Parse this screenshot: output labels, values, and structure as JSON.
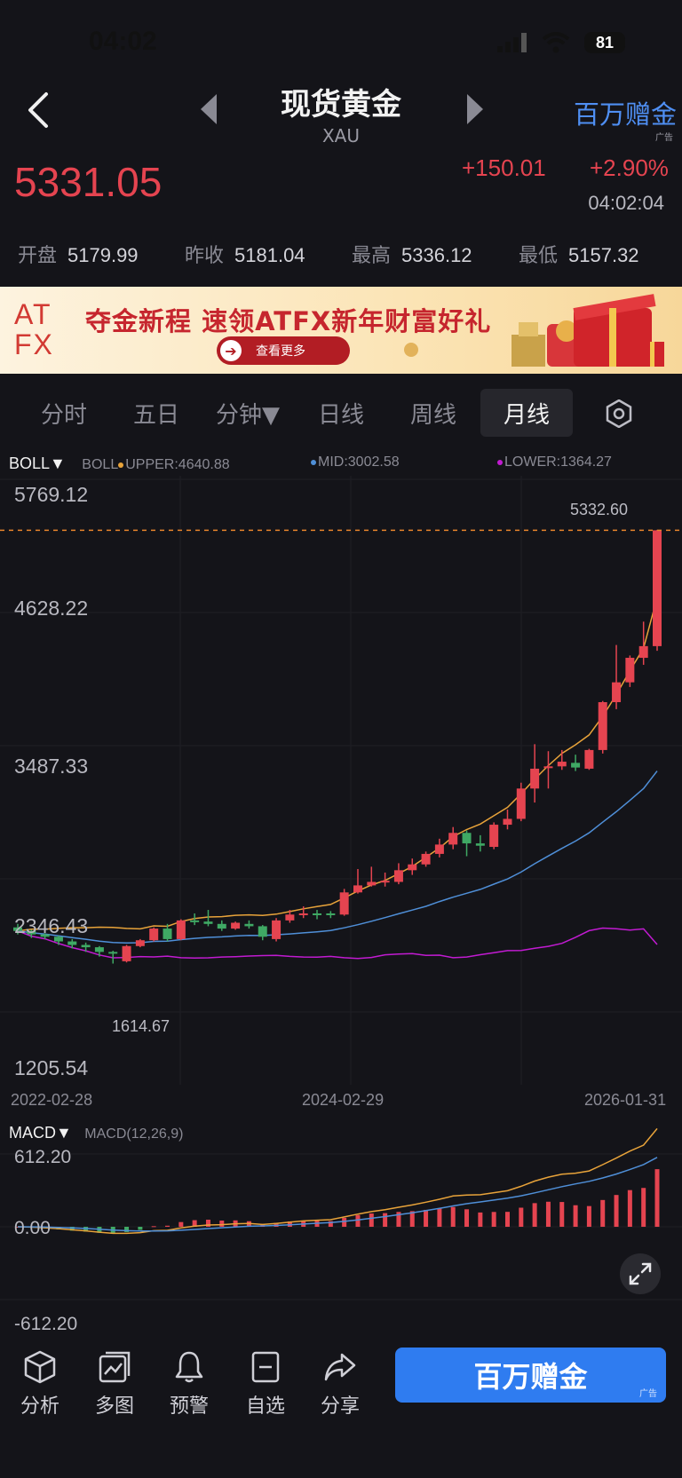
{
  "status": {
    "time": "04:02",
    "battery": "81"
  },
  "nav": {
    "title": "现货黄金",
    "subtitle": "XAU",
    "ad_label": "百万赠金",
    "ad_tag": "广告"
  },
  "quote": {
    "price": "5331.05",
    "change": "+150.01",
    "change_pct": "+2.90%",
    "time": "04:02:04"
  },
  "ohlc": [
    {
      "label": "开盘",
      "value": "5179.99"
    },
    {
      "label": "昨收",
      "value": "5181.04"
    },
    {
      "label": "最高",
      "value": "5336.12"
    },
    {
      "label": "最低",
      "value": "5157.32"
    }
  ],
  "banner": {
    "logo_line1": "AT",
    "logo_line2": "FX",
    "headline": "夺金新程  速领ATFX新年财富好礼",
    "button": "查看更多"
  },
  "tabs": [
    "分时",
    "五日",
    "分钟▼",
    "日线",
    "周线",
    "月线"
  ],
  "selected_tab": "月线",
  "indicator": {
    "name": "BOLL▼",
    "boll": "BOLL",
    "upper": "UPPER:4640.88",
    "mid": "MID:3002.58",
    "lower": "LOWER:1364.27"
  },
  "price_axis": [
    "5769.12",
    "4628.22",
    "3487.33",
    "2346.43",
    "1205.54"
  ],
  "marker_high": "5332.60",
  "marker_low": "1614.67",
  "date_axis": [
    "2022-02-28",
    "2024-02-29",
    "2026-01-31"
  ],
  "macd": {
    "name": "MACD▼",
    "params": "MACD(12,26,9)",
    "axis": [
      "612.20",
      "0.00",
      "-612.20"
    ]
  },
  "bottom": {
    "buttons": [
      "分析",
      "多图",
      "预警",
      "自选",
      "分享"
    ],
    "cta": "百万赠金",
    "cta_tag": "广告"
  },
  "colors": {
    "up": "#e54450",
    "down": "#3fa964",
    "accent": "#2f7cf0",
    "upper_line": "#e8a33a",
    "mid_line": "#4f8fd8",
    "lower_line": "#c21bd2"
  },
  "chart_data": {
    "type": "candlestick",
    "title": "",
    "x_range": [
      "2022-02-28",
      "2026-01-31"
    ],
    "ylim": [
      1205.54,
      5769.12
    ],
    "last_close": 5332.6,
    "series_approx": [
      {
        "o": 1930,
        "c": 1900,
        "h": 1960,
        "l": 1870
      },
      {
        "o": 1900,
        "c": 1870,
        "h": 1910,
        "l": 1840
      },
      {
        "o": 1870,
        "c": 1850,
        "h": 1880,
        "l": 1830
      },
      {
        "o": 1850,
        "c": 1810,
        "h": 1860,
        "l": 1780
      },
      {
        "o": 1810,
        "c": 1780,
        "h": 1830,
        "l": 1750
      },
      {
        "o": 1780,
        "c": 1760,
        "h": 1800,
        "l": 1720
      },
      {
        "o": 1760,
        "c": 1720,
        "h": 1770,
        "l": 1680
      },
      {
        "o": 1720,
        "c": 1710,
        "h": 1730,
        "l": 1620
      },
      {
        "o": 1640,
        "c": 1770,
        "h": 1780,
        "l": 1630
      },
      {
        "o": 1770,
        "c": 1820,
        "h": 1830,
        "l": 1760
      },
      {
        "o": 1820,
        "c": 1920,
        "h": 1930,
        "l": 1810
      },
      {
        "o": 1920,
        "c": 1830,
        "h": 1960,
        "l": 1810
      },
      {
        "o": 1830,
        "c": 1990,
        "h": 2000,
        "l": 1820
      },
      {
        "o": 1990,
        "c": 1980,
        "h": 2050,
        "l": 1950
      },
      {
        "o": 1980,
        "c": 1960,
        "h": 2080,
        "l": 1940
      },
      {
        "o": 1960,
        "c": 1920,
        "h": 1990,
        "l": 1900
      },
      {
        "o": 1920,
        "c": 1970,
        "h": 1980,
        "l": 1910
      },
      {
        "o": 1960,
        "c": 1940,
        "h": 1990,
        "l": 1920
      },
      {
        "o": 1940,
        "c": 1850,
        "h": 1950,
        "l": 1820
      },
      {
        "o": 1830,
        "c": 1990,
        "h": 2010,
        "l": 1810
      },
      {
        "o": 1990,
        "c": 2040,
        "h": 2080,
        "l": 1970
      },
      {
        "o": 2040,
        "c": 2050,
        "h": 2110,
        "l": 2010
      },
      {
        "o": 2050,
        "c": 2040,
        "h": 2080,
        "l": 2000
      },
      {
        "o": 2050,
        "c": 2040,
        "h": 2070,
        "l": 2010
      },
      {
        "o": 2040,
        "c": 2230,
        "h": 2260,
        "l": 2030
      },
      {
        "o": 2230,
        "c": 2290,
        "h": 2430,
        "l": 2220
      },
      {
        "o": 2290,
        "c": 2320,
        "h": 2450,
        "l": 2280
      },
      {
        "o": 2330,
        "c": 2330,
        "h": 2400,
        "l": 2280
      },
      {
        "o": 2320,
        "c": 2420,
        "h": 2480,
        "l": 2300
      },
      {
        "o": 2420,
        "c": 2470,
        "h": 2520,
        "l": 2380
      },
      {
        "o": 2470,
        "c": 2560,
        "h": 2580,
        "l": 2450
      },
      {
        "o": 2560,
        "c": 2640,
        "h": 2690,
        "l": 2530
      },
      {
        "o": 2640,
        "c": 2740,
        "h": 2790,
        "l": 2600
      },
      {
        "o": 2740,
        "c": 2650,
        "h": 2760,
        "l": 2540
      },
      {
        "o": 2650,
        "c": 2630,
        "h": 2720,
        "l": 2580
      },
      {
        "o": 2620,
        "c": 2810,
        "h": 2830,
        "l": 2600
      },
      {
        "o": 2810,
        "c": 2860,
        "h": 2940,
        "l": 2770
      },
      {
        "o": 2860,
        "c": 3120,
        "h": 3170,
        "l": 2840
      },
      {
        "o": 3120,
        "c": 3290,
        "h": 3500,
        "l": 3000
      },
      {
        "o": 3300,
        "c": 3310,
        "h": 3440,
        "l": 3120
      },
      {
        "o": 3310,
        "c": 3350,
        "h": 3450,
        "l": 3280
      },
      {
        "o": 3340,
        "c": 3300,
        "h": 3410,
        "l": 3270
      },
      {
        "o": 3290,
        "c": 3450,
        "h": 3460,
        "l": 3280
      },
      {
        "o": 3450,
        "c": 3860,
        "h": 3870,
        "l": 3420
      },
      {
        "o": 3860,
        "c": 4030,
        "h": 4350,
        "l": 3800
      },
      {
        "o": 4030,
        "c": 4240,
        "h": 4260,
        "l": 3990
      },
      {
        "o": 4240,
        "c": 4340,
        "h": 4550,
        "l": 4180
      },
      {
        "o": 4340,
        "c": 5332.6,
        "h": 5336.12,
        "l": 4300
      }
    ],
    "overlays": [
      "BOLL UPPER 4640.88",
      "BOLL MID 3002.58",
      "BOLL LOWER 1364.27"
    ]
  }
}
